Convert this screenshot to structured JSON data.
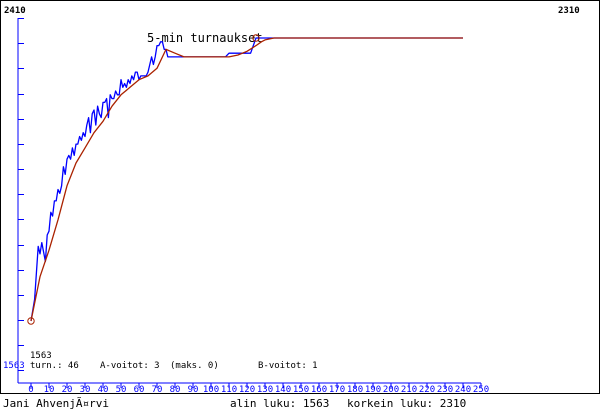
{
  "chart_data": {
    "type": "line",
    "title": "5-min turnaukset",
    "top_left_label": "2410",
    "top_right_label": "2310",
    "ymin_label": "1563",
    "xlim": [
      0,
      250
    ],
    "ylim": [
      1563,
      2410
    ],
    "x_ticks": [
      0,
      10,
      20,
      30,
      40,
      50,
      60,
      70,
      80,
      90,
      100,
      110,
      120,
      130,
      140,
      150,
      160,
      170,
      180,
      190,
      200,
      210,
      220,
      230,
      240,
      250
    ],
    "stats": {
      "turns_label": "turn.: 46",
      "a_wins_label": "A-voitot: 3",
      "max_label": "(maks. 0)",
      "b_wins_label": "B-voitot: 1"
    },
    "series": [
      {
        "color": "#0000ff",
        "x": [
          0,
          2,
          4,
          5,
          6,
          8,
          9,
          10,
          11,
          12,
          13,
          14,
          15,
          16,
          17,
          18,
          19,
          20,
          21,
          22,
          23,
          24,
          25,
          26,
          27,
          28,
          29,
          30,
          31,
          32,
          33,
          34,
          35,
          36,
          37,
          38,
          39,
          40,
          41,
          42,
          43,
          44,
          45,
          46,
          47,
          48,
          49,
          50,
          51,
          52,
          53,
          54,
          55,
          56,
          57,
          58,
          59,
          60,
          61,
          62,
          63,
          64,
          65,
          66,
          67,
          68,
          69,
          70,
          71,
          72,
          73,
          74,
          75,
          76,
          80,
          85,
          90,
          95,
          100,
          105,
          108,
          110,
          115,
          118,
          120,
          122,
          125,
          130,
          135,
          140,
          150,
          160,
          170,
          180,
          190,
          200,
          210,
          220,
          230,
          240
        ],
        "y": [
          1563,
          1620,
          1760,
          1740,
          1770,
          1720,
          1790,
          1800,
          1850,
          1840,
          1880,
          1880,
          1910,
          1900,
          1920,
          1970,
          1950,
          1990,
          2000,
          1990,
          2020,
          2000,
          2030,
          2030,
          2050,
          2040,
          2060,
          2050,
          2080,
          2100,
          2060,
          2110,
          2120,
          2080,
          2130,
          2110,
          2100,
          2140,
          2140,
          2150,
          2100,
          2160,
          2150,
          2150,
          2170,
          2160,
          2160,
          2200,
          2180,
          2190,
          2180,
          2200,
          2190,
          2210,
          2200,
          2220,
          2220,
          2200,
          2210,
          2210,
          2210,
          2210,
          2220,
          2240,
          2260,
          2240,
          2260,
          2290,
          2290,
          2300,
          2300,
          2280,
          2280,
          2260,
          2260,
          2260,
          2260,
          2260,
          2260,
          2260,
          2260,
          2270,
          2270,
          2270,
          2270,
          2270,
          2310,
          2310,
          2310,
          2310,
          2310,
          2310,
          2310,
          2310,
          2310,
          2310,
          2310,
          2310,
          2310,
          2310
        ]
      },
      {
        "color": "#aa2200",
        "x": [
          0,
          5,
          10,
          15,
          20,
          25,
          30,
          35,
          40,
          45,
          50,
          55,
          60,
          65,
          70,
          75,
          80,
          85,
          90,
          95,
          100,
          105,
          110,
          115,
          120,
          125,
          128,
          130,
          135,
          140,
          150,
          160,
          170,
          180,
          190,
          200,
          210,
          220,
          230,
          240
        ],
        "y": [
          1563,
          1680,
          1750,
          1830,
          1920,
          1980,
          2020,
          2060,
          2090,
          2130,
          2160,
          2180,
          2200,
          2210,
          2230,
          2280,
          2270,
          2260,
          2260,
          2260,
          2260,
          2260,
          2260,
          2265,
          2275,
          2290,
          2300,
          2305,
          2310,
          2310,
          2310,
          2310,
          2310,
          2310,
          2310,
          2310,
          2310,
          2310,
          2310,
          2310
        ]
      }
    ]
  },
  "footer": {
    "player_name": "Jani AhvenjÃ¤rvi",
    "min_label": "alin luku: 1563",
    "max_label": "korkein luku: 2310"
  }
}
